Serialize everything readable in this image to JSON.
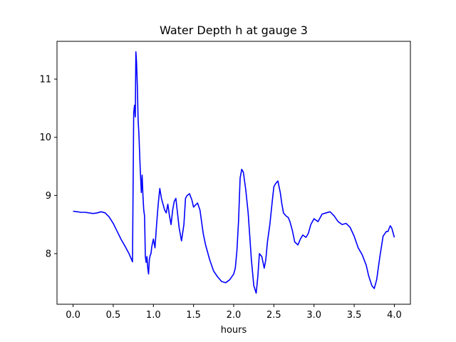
{
  "chart_data": {
    "type": "line",
    "title": "Water Depth h at gauge 3",
    "xlabel": "hours",
    "ylabel": "",
    "xlim": [
      -0.2,
      4.2
    ],
    "ylim": [
      7.13,
      11.65
    ],
    "xticks": [
      0.0,
      0.5,
      1.0,
      1.5,
      2.0,
      2.5,
      3.0,
      3.5,
      4.0
    ],
    "xtick_labels": [
      "0.0",
      "0.5",
      "1.0",
      "1.5",
      "2.0",
      "2.5",
      "3.0",
      "3.5",
      "4.0"
    ],
    "yticks": [
      8,
      9,
      10,
      11
    ],
    "ytick_labels": [
      "8",
      "9",
      "10",
      "11"
    ],
    "grid": false,
    "series": [
      {
        "color": "#0000ff",
        "x": [
          0.0,
          0.05,
          0.1,
          0.15,
          0.2,
          0.25,
          0.3,
          0.35,
          0.4,
          0.45,
          0.5,
          0.55,
          0.6,
          0.65,
          0.7,
          0.74,
          0.755,
          0.765,
          0.775,
          0.782,
          0.79,
          0.8,
          0.81,
          0.82,
          0.835,
          0.85,
          0.86,
          0.87,
          0.88,
          0.89,
          0.9,
          0.91,
          0.92,
          0.93,
          0.94,
          0.95,
          0.96,
          0.97,
          0.98,
          1.0,
          1.02,
          1.04,
          1.06,
          1.08,
          1.1,
          1.12,
          1.14,
          1.16,
          1.18,
          1.2,
          1.22,
          1.24,
          1.26,
          1.28,
          1.3,
          1.32,
          1.35,
          1.38,
          1.4,
          1.42,
          1.45,
          1.48,
          1.5,
          1.52,
          1.55,
          1.58,
          1.6,
          1.62,
          1.65,
          1.7,
          1.75,
          1.8,
          1.85,
          1.9,
          1.95,
          2.0,
          2.02,
          2.04,
          2.06,
          2.08,
          2.1,
          2.12,
          2.15,
          2.18,
          2.2,
          2.22,
          2.25,
          2.28,
          2.3,
          2.32,
          2.35,
          2.38,
          2.4,
          2.42,
          2.45,
          2.48,
          2.5,
          2.52,
          2.55,
          2.58,
          2.6,
          2.62,
          2.65,
          2.68,
          2.7,
          2.73,
          2.76,
          2.8,
          2.83,
          2.86,
          2.9,
          2.93,
          2.96,
          3.0,
          3.05,
          3.1,
          3.15,
          3.2,
          3.25,
          3.3,
          3.35,
          3.4,
          3.45,
          3.5,
          3.55,
          3.6,
          3.65,
          3.68,
          3.72,
          3.75,
          3.78,
          3.82,
          3.86,
          3.9,
          3.92,
          3.94,
          3.95,
          3.97,
          4.0
        ],
        "y": [
          8.73,
          8.72,
          8.71,
          8.71,
          8.7,
          8.69,
          8.7,
          8.72,
          8.7,
          8.63,
          8.52,
          8.38,
          8.24,
          8.12,
          7.99,
          7.86,
          10.42,
          10.55,
          10.35,
          11.47,
          11.3,
          10.9,
          10.3,
          10.05,
          9.5,
          9.05,
          9.35,
          9.0,
          8.75,
          8.65,
          7.95,
          7.85,
          7.95,
          7.75,
          7.65,
          7.9,
          7.97,
          8.0,
          8.12,
          8.25,
          8.1,
          8.5,
          8.85,
          9.12,
          8.95,
          8.85,
          8.75,
          8.7,
          8.85,
          8.65,
          8.5,
          8.75,
          8.9,
          8.95,
          8.7,
          8.45,
          8.22,
          8.5,
          8.95,
          9.0,
          9.03,
          8.92,
          8.8,
          8.83,
          8.87,
          8.75,
          8.55,
          8.35,
          8.15,
          7.9,
          7.7,
          7.6,
          7.52,
          7.5,
          7.55,
          7.65,
          7.75,
          8.05,
          8.55,
          9.3,
          9.45,
          9.4,
          9.1,
          8.7,
          8.3,
          7.9,
          7.45,
          7.32,
          7.6,
          8.0,
          7.95,
          7.75,
          7.9,
          8.2,
          8.5,
          8.9,
          9.15,
          9.2,
          9.25,
          9.05,
          8.85,
          8.7,
          8.65,
          8.62,
          8.55,
          8.4,
          8.2,
          8.15,
          8.25,
          8.32,
          8.28,
          8.35,
          8.5,
          8.6,
          8.55,
          8.68,
          8.7,
          8.72,
          8.65,
          8.55,
          8.5,
          8.52,
          8.45,
          8.3,
          8.1,
          7.98,
          7.8,
          7.62,
          7.45,
          7.4,
          7.55,
          7.95,
          8.3,
          8.38,
          8.38,
          8.45,
          8.48,
          8.43,
          8.28
        ]
      }
    ]
  }
}
